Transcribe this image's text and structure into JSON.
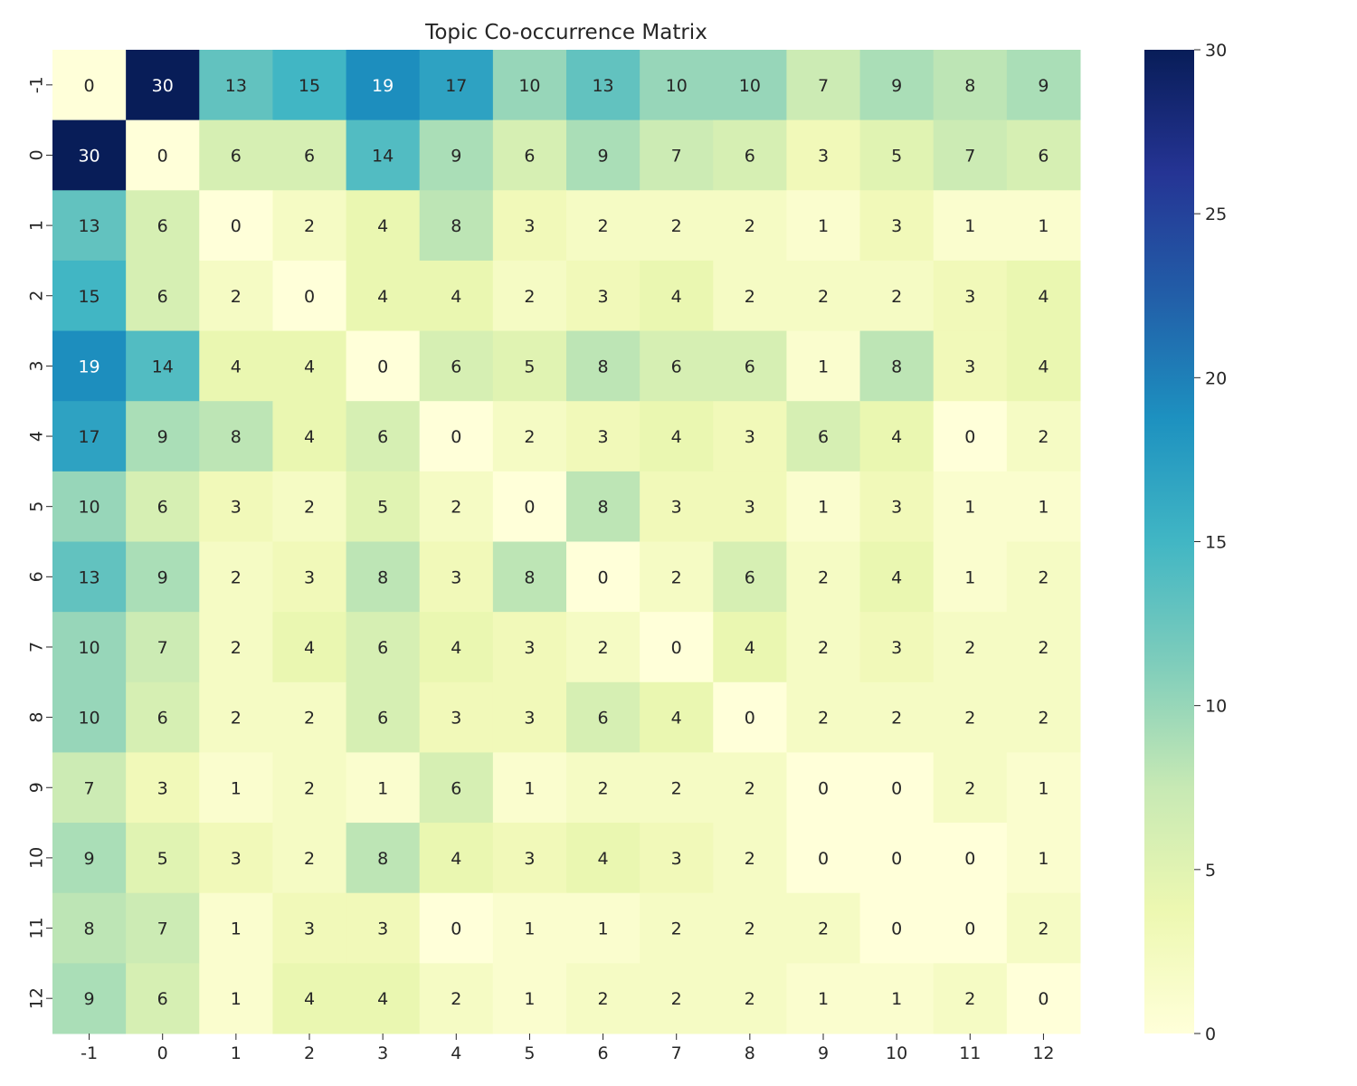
{
  "chart_data": {
    "type": "heatmap",
    "title": "Topic Co-occurrence Matrix",
    "xlabel": "",
    "ylabel": "",
    "x_categories": [
      "-1",
      "0",
      "1",
      "2",
      "3",
      "4",
      "5",
      "6",
      "7",
      "8",
      "9",
      "10",
      "11",
      "12"
    ],
    "y_categories": [
      "-1",
      "0",
      "1",
      "2",
      "3",
      "4",
      "5",
      "6",
      "7",
      "8",
      "9",
      "10",
      "11",
      "12"
    ],
    "values": [
      [
        0,
        30,
        13,
        15,
        19,
        17,
        10,
        13,
        10,
        10,
        7,
        9,
        8,
        9
      ],
      [
        30,
        0,
        6,
        6,
        14,
        9,
        6,
        9,
        7,
        6,
        3,
        5,
        7,
        6
      ],
      [
        13,
        6,
        0,
        2,
        4,
        8,
        3,
        2,
        2,
        2,
        1,
        3,
        1,
        1
      ],
      [
        15,
        6,
        2,
        0,
        4,
        4,
        2,
        3,
        4,
        2,
        2,
        2,
        3,
        4
      ],
      [
        19,
        14,
        4,
        4,
        0,
        6,
        5,
        8,
        6,
        6,
        1,
        8,
        3,
        4
      ],
      [
        17,
        9,
        8,
        4,
        6,
        0,
        2,
        3,
        4,
        3,
        6,
        4,
        0,
        2
      ],
      [
        10,
        6,
        3,
        2,
        5,
        2,
        0,
        8,
        3,
        3,
        1,
        3,
        1,
        1
      ],
      [
        13,
        9,
        2,
        3,
        8,
        3,
        8,
        0,
        2,
        6,
        2,
        4,
        1,
        2
      ],
      [
        10,
        7,
        2,
        4,
        6,
        4,
        3,
        2,
        0,
        4,
        2,
        3,
        2,
        2
      ],
      [
        10,
        6,
        2,
        2,
        6,
        3,
        3,
        6,
        4,
        0,
        2,
        2,
        2,
        2
      ],
      [
        7,
        3,
        1,
        2,
        1,
        6,
        1,
        2,
        2,
        2,
        0,
        0,
        2,
        1
      ],
      [
        9,
        5,
        3,
        2,
        8,
        4,
        3,
        4,
        3,
        2,
        0,
        0,
        0,
        1
      ],
      [
        8,
        7,
        1,
        3,
        3,
        0,
        1,
        1,
        2,
        2,
        2,
        0,
        0,
        2
      ],
      [
        9,
        6,
        1,
        4,
        4,
        2,
        1,
        2,
        2,
        2,
        1,
        1,
        2,
        0
      ]
    ],
    "colormap": "YlGnBu",
    "colorbar": {
      "min": 0,
      "max": 30,
      "ticks": [
        0,
        5,
        10,
        15,
        20,
        25,
        30
      ]
    },
    "annotated": true,
    "grid": false
  }
}
